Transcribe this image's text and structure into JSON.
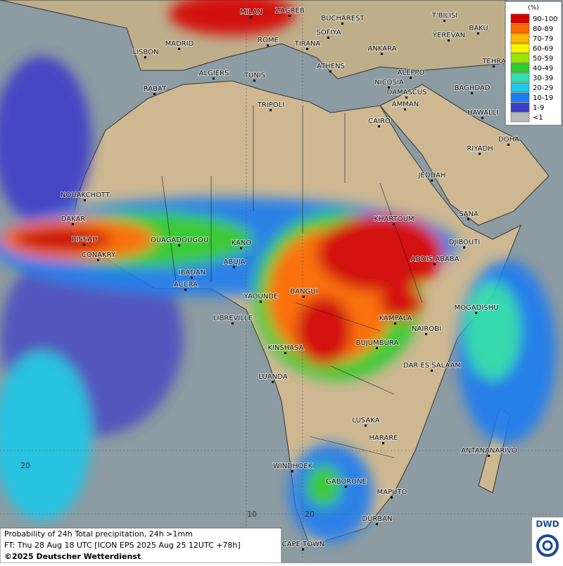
{
  "map": {
    "cities": [
      "MILAN",
      "ZAGREB",
      "BUCHAREST",
      "T'BILISI",
      "BAKU",
      "MADRID",
      "SOFIYA",
      "YEREVAN",
      "LISBON",
      "ROME",
      "TIRANA",
      "ANKARA",
      "TEHRA",
      "ALGIERS",
      "TUNIS",
      "ATHENS",
      "ALEPPO",
      "RABAT",
      "NICOSIA",
      "BAGHDAD",
      "DAMASCUS",
      "TRIPOLI",
      "AMMAN",
      "HAWALLI",
      "CAIRO",
      "DOHA",
      "RIYADH",
      "JEDDAH",
      "NOUAKCHOTT",
      "SANA",
      "DAKAR",
      "KHARTOUM",
      "BISSAU",
      "OUAGADOUGOU",
      "DJIBOUTI",
      "CONAKRY",
      "KANO",
      "ADDIS ABABA",
      "ABUJA",
      "IBADAN",
      "ACCRA",
      "BANGUI",
      "YAOUNDE",
      "MOGADISHU",
      "LIBREVILLE",
      "KAMPALA",
      "NAIROBI",
      "KINSHASA",
      "BUJUMBURA",
      "DAR ES SALAAM",
      "LUANDA",
      "LUSAKA",
      "HARARE",
      "ANTANANARIVO",
      "WINDHOEK",
      "GABORONE",
      "MAPUTO",
      "DURBAN",
      "CAPE TOWN"
    ],
    "grid_labels": [
      "20",
      "10",
      "20"
    ]
  },
  "legend": {
    "title": "(%)",
    "items": [
      {
        "label": "90-100",
        "color": "#d40000"
      },
      {
        "label": "80-89",
        "color": "#ff6a00"
      },
      {
        "label": "70-79",
        "color": "#ffb800"
      },
      {
        "label": "60-69",
        "color": "#f5f500"
      },
      {
        "label": "50-59",
        "color": "#9be600"
      },
      {
        "label": "40-49",
        "color": "#2ecc2e"
      },
      {
        "label": "30-39",
        "color": "#2ee0b0"
      },
      {
        "label": "20-29",
        "color": "#1ec8e8"
      },
      {
        "label": "10-19",
        "color": "#1e7cf0"
      },
      {
        "label": "1-9",
        "color": "#3c3cc8"
      },
      {
        "label": "<1",
        "color": "#bbbbbb"
      }
    ]
  },
  "footer": {
    "line1": "Probability of 24h Total precipitation, 24h >1mm",
    "line2": "FT: Thu 28 Aug 18 UTC [ICON EPS 2025 Aug 25 12UTC +78h]",
    "line3": "©2025 Deutscher Wetterdienst"
  },
  "logo": "DWD"
}
